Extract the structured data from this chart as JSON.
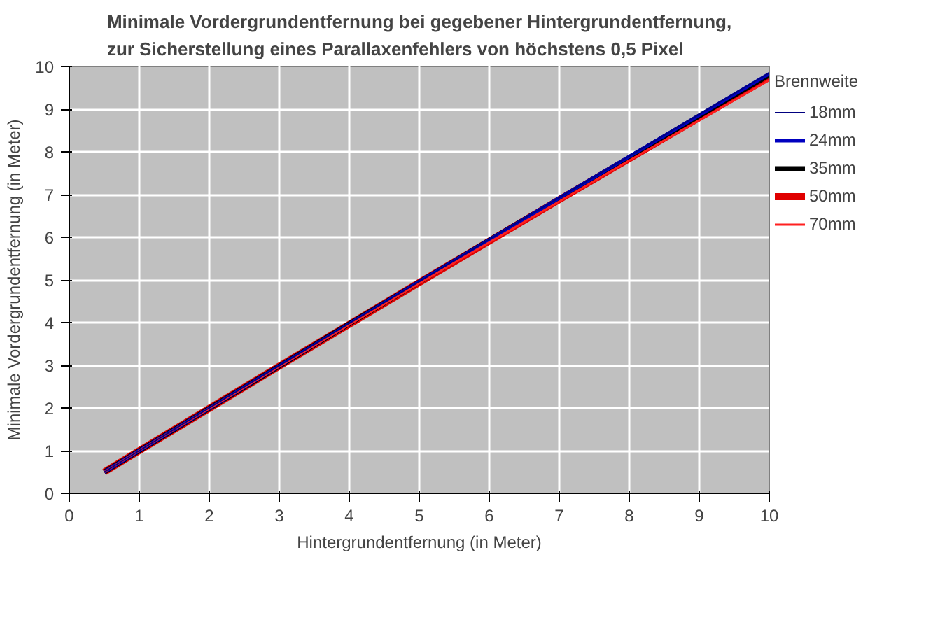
{
  "chart_data": {
    "type": "line",
    "title": "Minimale Vordergrundentfernung bei gegebener Hintergrundentfernung,\nzur Sicherstellung eines Parallaxenfehlers von höchstens 0,5 Pixel",
    "xlabel": "Hintergrundentfernung (in Meter)",
    "ylabel": "Minimale Vordergrundentfernung (in Meter)",
    "legend_title": "Brennweite",
    "legend": "right",
    "grid": true,
    "marker": "none",
    "line_style": "solid",
    "x": [
      0.5,
      1,
      2,
      3,
      4,
      5,
      6,
      7,
      8,
      9,
      10
    ],
    "xlim": [
      0,
      10
    ],
    "xticks": [
      0,
      1,
      2,
      3,
      4,
      5,
      6,
      7,
      8,
      9,
      10
    ],
    "ylim": [
      0,
      10
    ],
    "yticks": [
      0,
      1,
      2,
      3,
      4,
      5,
      6,
      7,
      8,
      9,
      10
    ],
    "series": [
      {
        "name": "18mm",
        "color": "#000080",
        "values": [
          0.5,
          1.0,
          2.0,
          2.99,
          3.98,
          4.96,
          5.95,
          6.93,
          7.9,
          8.88,
          9.85
        ]
      },
      {
        "name": "24mm",
        "color": "#0000c0",
        "values": [
          0.5,
          1.0,
          1.99,
          2.98,
          3.97,
          4.96,
          5.94,
          6.92,
          7.89,
          8.86,
          9.83
        ]
      },
      {
        "name": "35mm",
        "color": "#000000",
        "values": [
          0.5,
          1.0,
          1.99,
          2.98,
          3.97,
          4.95,
          5.93,
          6.9,
          7.87,
          8.84,
          9.8
        ]
      },
      {
        "name": "50mm",
        "color": "#e00000",
        "values": [
          0.5,
          1.0,
          1.99,
          2.98,
          3.96,
          4.94,
          5.91,
          6.88,
          7.84,
          8.8,
          9.75
        ]
      },
      {
        "name": "70mm",
        "color": "#ff2020",
        "values": [
          0.5,
          1.0,
          1.99,
          2.97,
          3.95,
          4.92,
          5.88,
          6.84,
          7.8,
          8.74,
          9.68
        ]
      }
    ]
  }
}
